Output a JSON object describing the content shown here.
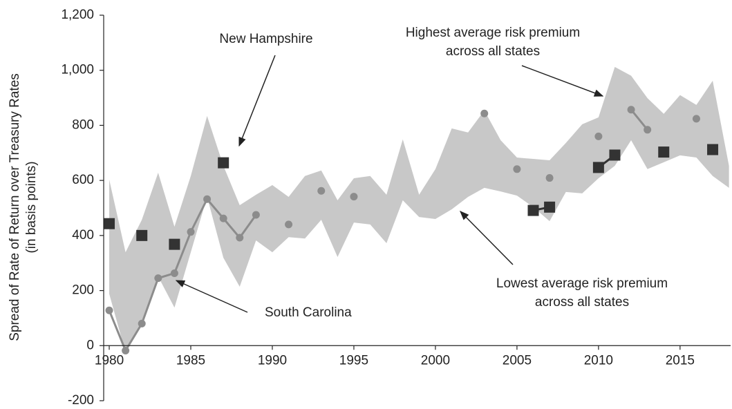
{
  "chart_data": {
    "type": "range-band-line",
    "ylabel": [
      "Spread of Rate of Return over Treasury Rates",
      "(in basis points)"
    ],
    "x": [
      1980,
      1981,
      1982,
      1983,
      1984,
      1985,
      1986,
      1987,
      1988,
      1989,
      1990,
      1991,
      1992,
      1993,
      1994,
      1995,
      1996,
      1997,
      1998,
      1999,
      2000,
      2001,
      2002,
      2003,
      2004,
      2005,
      2006,
      2007,
      2008,
      2009,
      2010,
      2011,
      2012,
      2013,
      2014,
      2015,
      2016,
      2017,
      2018
    ],
    "band": {
      "color": "#c8c8c8",
      "high": [
        603,
        339,
        457,
        628,
        432,
        616,
        834,
        653,
        510,
        548,
        583,
        540,
        616,
        636,
        528,
        608,
        616,
        548,
        749,
        548,
        641,
        789,
        774,
        854,
        746,
        683,
        678,
        673,
        736,
        804,
        829,
        1012,
        980,
        899,
        842,
        910,
        874,
        962,
        653
      ],
      "low": [
        188,
        -25,
        75,
        251,
        138,
        339,
        540,
        319,
        214,
        382,
        339,
        394,
        389,
        457,
        322,
        447,
        440,
        372,
        528,
        467,
        460,
        495,
        540,
        573,
        560,
        545,
        503,
        452,
        558,
        553,
        608,
        653,
        746,
        641,
        666,
        691,
        683,
        616,
        573
      ]
    },
    "series": [
      {
        "name": "South Carolina",
        "color": "#8c8c8c",
        "marker": "circle",
        "values": [
          128,
          -18,
          80,
          245,
          263,
          413,
          532,
          462,
          392,
          475,
          null,
          440,
          null,
          562,
          null,
          541,
          null,
          null,
          null,
          null,
          null,
          null,
          null,
          843,
          null,
          641,
          null,
          609,
          null,
          null,
          760,
          null,
          857,
          784,
          null,
          null,
          824,
          null,
          null
        ]
      },
      {
        "name": "New Hampshire",
        "color": "#333333",
        "marker": "square",
        "values": [
          443,
          null,
          400,
          null,
          368,
          null,
          null,
          664,
          null,
          null,
          null,
          null,
          null,
          null,
          null,
          null,
          null,
          null,
          null,
          null,
          null,
          null,
          null,
          null,
          null,
          null,
          491,
          503,
          null,
          null,
          647,
          692,
          null,
          null,
          703,
          null,
          null,
          712,
          null
        ]
      }
    ],
    "annotations": [
      {
        "lines": [
          "Highest average risk premium",
          "across all states"
        ]
      },
      {
        "lines": [
          "Lowest average risk premium",
          "across all states"
        ]
      }
    ],
    "xlim": [
      1979.66,
      2018.1
    ],
    "xticks": [
      1980,
      1985,
      1990,
      1995,
      2000,
      2005,
      2010,
      2015
    ],
    "ylim": [
      -200,
      1200
    ],
    "yticks": [
      -200,
      0,
      200,
      400,
      600,
      800,
      {
        "value": 1000,
        "label": "1,000"
      },
      {
        "value": 1200,
        "label": "1,200"
      }
    ]
  }
}
